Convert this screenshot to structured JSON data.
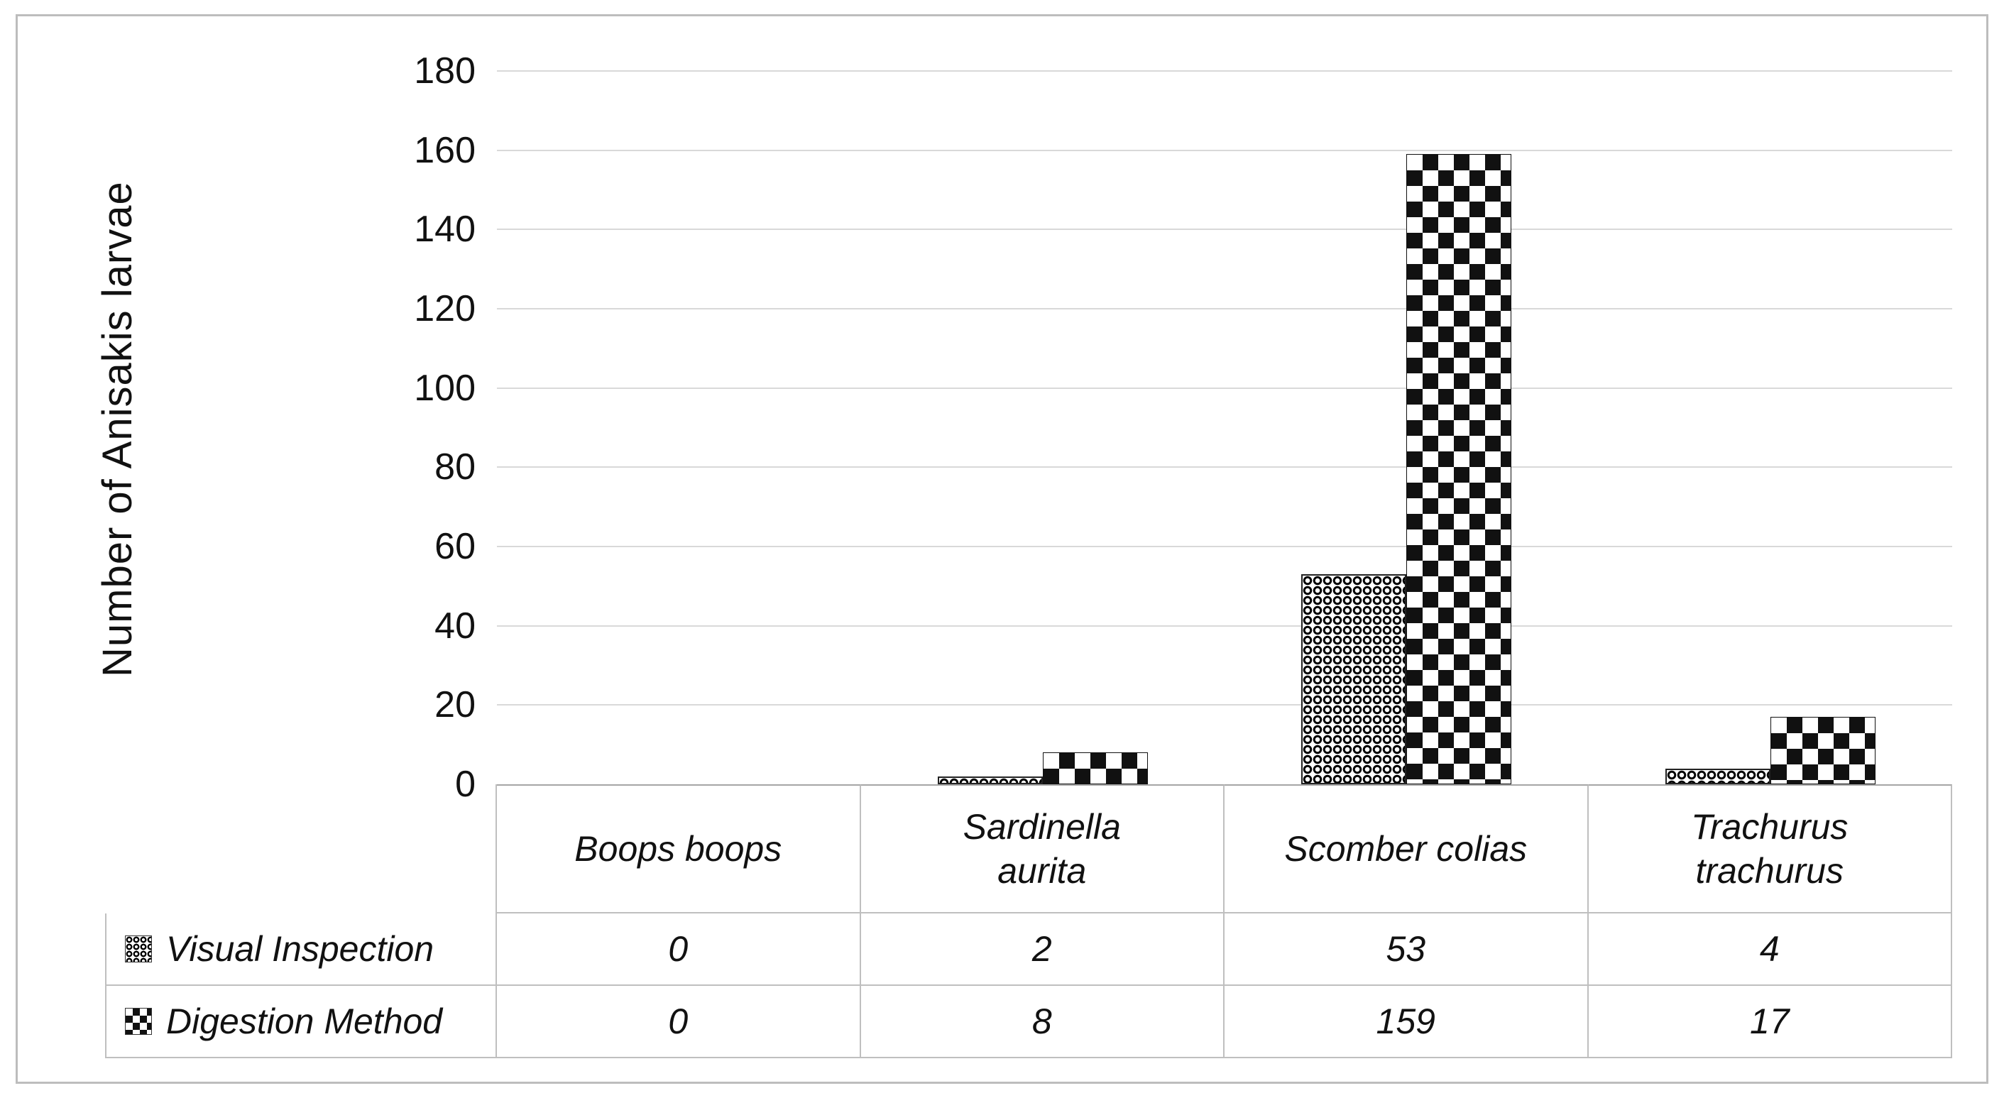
{
  "figure": {
    "border_color": "#bdbdbd",
    "background": "#ffffff"
  },
  "colors": {
    "grid": "#d9d9d9",
    "axis": "#a6a6a6",
    "table_border": "#bfbfbf",
    "text": "#111111",
    "pattern_fg": "#111111",
    "pattern_bg": "#ffffff"
  },
  "chart_data": {
    "type": "bar",
    "title": "",
    "xlabel": "",
    "ylabel": "Number of Anisakis larvae",
    "categories": [
      "Boops boops",
      "Sardinella\naurita",
      "Scomber colias",
      "Trachurus\ntrachurus"
    ],
    "series": [
      {
        "name": "Visual Inspection",
        "pattern": "dotted",
        "values": [
          0,
          2,
          53,
          4
        ]
      },
      {
        "name": "Digestion Method",
        "pattern": "checker",
        "values": [
          0,
          8,
          159,
          17
        ]
      }
    ],
    "ylim": [
      0,
      180
    ],
    "ytick_step": 20,
    "yticks": [
      0,
      20,
      40,
      60,
      80,
      100,
      120,
      140,
      160,
      180
    ],
    "grid": true,
    "legend_position": "data-table-left",
    "data_table": true
  }
}
